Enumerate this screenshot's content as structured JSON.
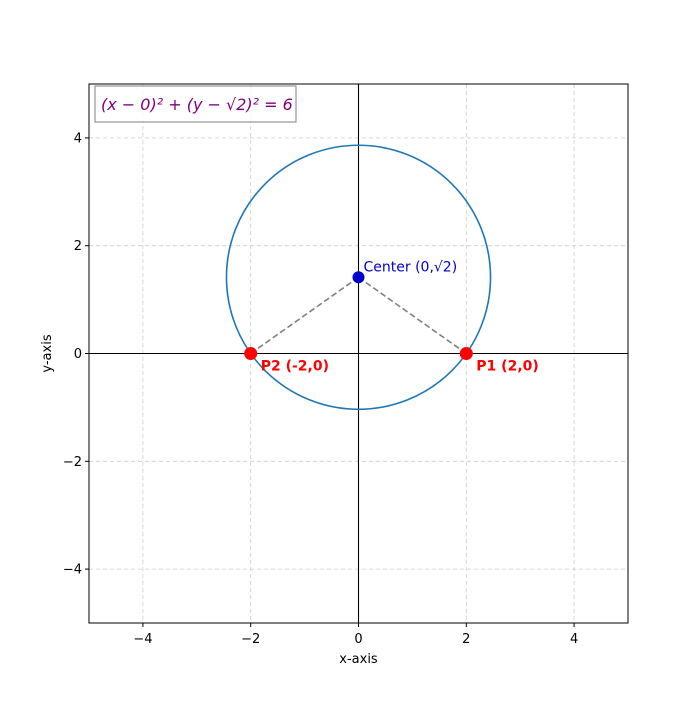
{
  "chart_data": {
    "type": "scatter",
    "xlabel": "x-axis",
    "ylabel": "y-axis",
    "xlim": [
      -5,
      5
    ],
    "ylim": [
      -5,
      5
    ],
    "xticks": [
      -4,
      -2,
      0,
      2,
      4
    ],
    "yticks": [
      -4,
      -2,
      0,
      2,
      4
    ],
    "xtick_labels": [
      "−4",
      "−2",
      "0",
      "2",
      "4"
    ],
    "ytick_labels": [
      "−4",
      "−2",
      "0",
      "2",
      "4"
    ],
    "grid": true,
    "equation_label": "(x − 0)² + (y − √2)² = 6",
    "circle": {
      "center": [
        0,
        1.4142
      ],
      "radius": 2.4495
    },
    "points": [
      {
        "x": 0,
        "y": 1.4142,
        "label": "Center (0,√2)",
        "color": "#0000cd",
        "marker": "center"
      },
      {
        "x": 2,
        "y": 0,
        "label": "P1 (2,0)",
        "color": "#ff0000",
        "marker": "point"
      },
      {
        "x": -2,
        "y": 0,
        "label": "P2 (-2,0)",
        "color": "#ff0000",
        "marker": "point"
      }
    ],
    "radius_segments": [
      {
        "from": [
          0,
          1.4142
        ],
        "to": [
          2,
          0
        ]
      },
      {
        "from": [
          0,
          1.4142
        ],
        "to": [
          -2,
          0
        ]
      }
    ],
    "colors": {
      "circle": "#1f77b4",
      "grid": "#cccccc",
      "segment": "#808080",
      "equation": "#800080",
      "axis_line": "#000000"
    }
  }
}
